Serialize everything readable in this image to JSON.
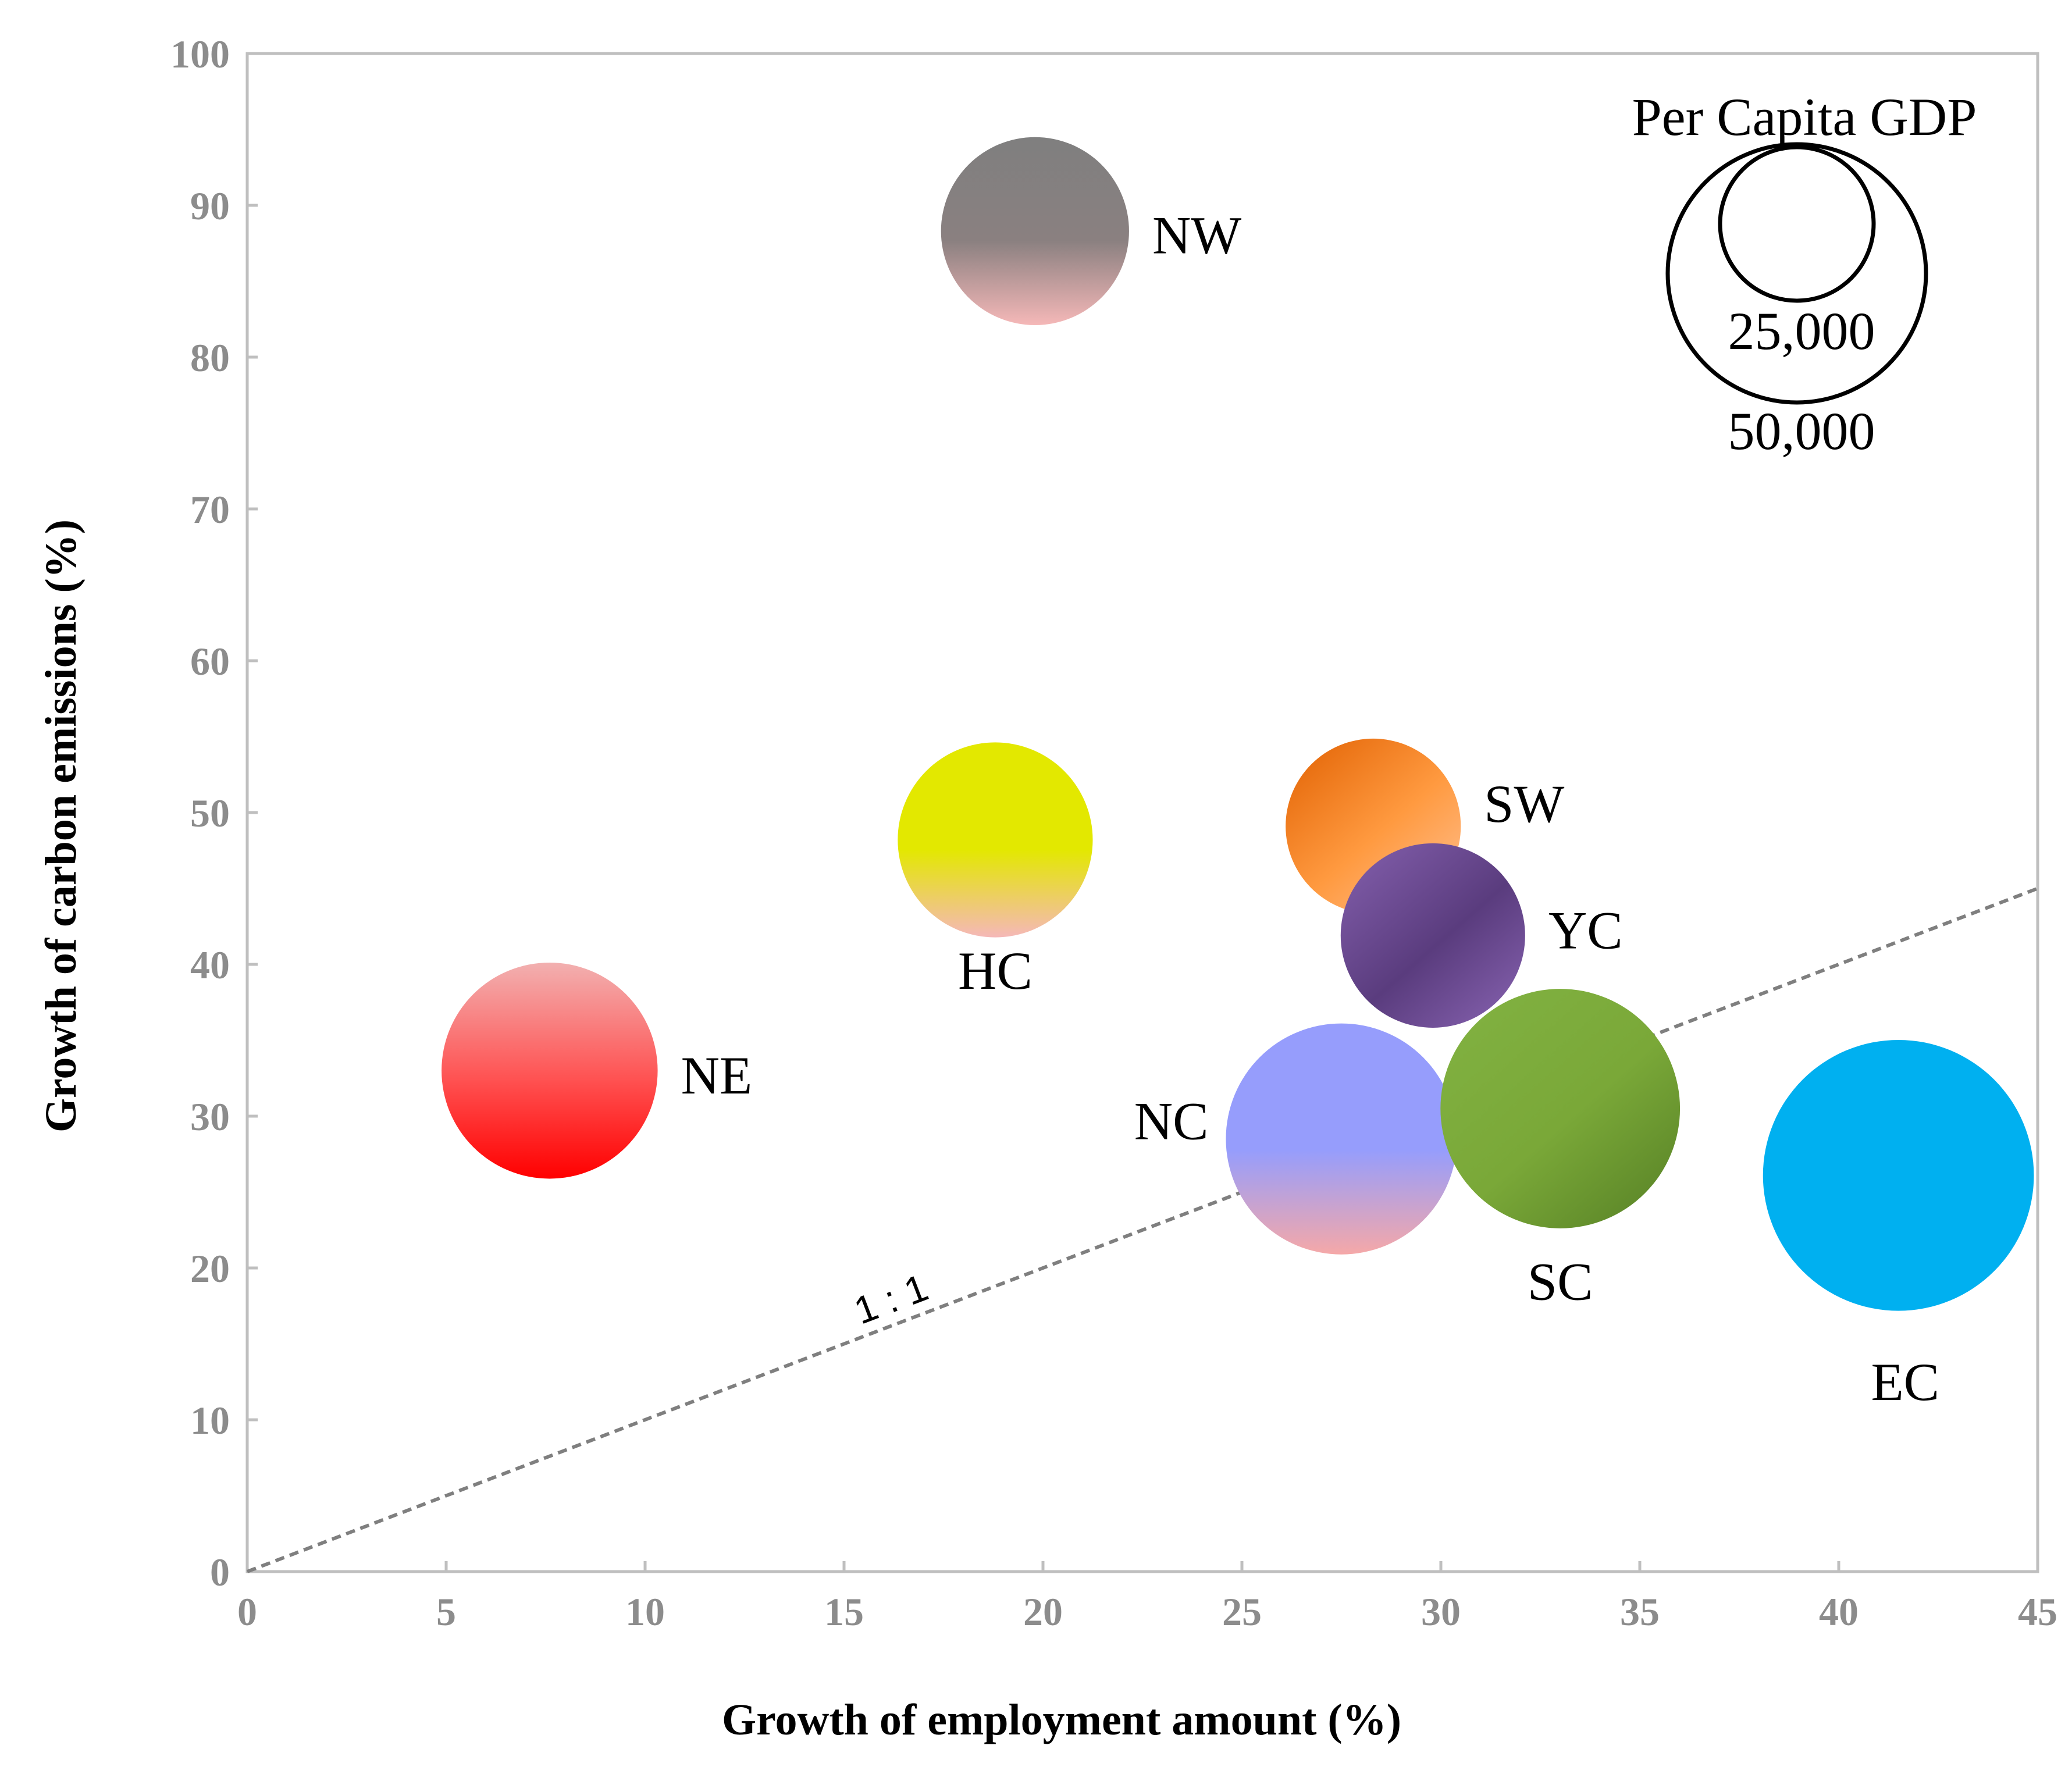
{
  "chart_data": {
    "type": "bubble",
    "xlabel": "Growth of employment amount (%)",
    "ylabel": "Growth of carbon emissions (%)",
    "xlim": [
      0,
      45
    ],
    "ylim": [
      0,
      100
    ],
    "x_ticks": [
      "0",
      "5",
      "10",
      "15",
      "20",
      "25",
      "30",
      "35",
      "40",
      "45"
    ],
    "y_ticks": [
      "0",
      "10",
      "20",
      "30",
      "40",
      "50",
      "60",
      "70",
      "80",
      "90",
      "100"
    ],
    "grid": false,
    "size_legend": {
      "title": "Per Capita GDP",
      "placement": "top-right",
      "entries": [
        {
          "label": "25,000",
          "value": 25000
        },
        {
          "label": "50,000",
          "value": 50000
        }
      ]
    },
    "reference_line": {
      "label": "1 : 1",
      "slope": 1,
      "style": "dashed",
      "color": "#7f7f7f"
    },
    "points": [
      {
        "name": "NE",
        "x": 7.6,
        "y": 33.0,
        "gdp": 35000,
        "colors": [
          "#f2b0b0",
          "#ff5050",
          "#ff0000"
        ]
      },
      {
        "name": "NW",
        "x": 19.8,
        "y": 88.3,
        "gdp": 26500,
        "colors": [
          "#7f7f7f",
          "#8a8080",
          "#f5b8b8"
        ]
      },
      {
        "name": "HC",
        "x": 18.8,
        "y": 48.2,
        "gdp": 28500,
        "colors": [
          "#e3e800",
          "#e3e800",
          "#f5b8b8"
        ]
      },
      {
        "name": "SW",
        "x": 28.3,
        "y": 49.1,
        "gdp": 23000,
        "colors": [
          "#e86e10",
          "#ff9a40",
          "#ffb880"
        ]
      },
      {
        "name": "YC",
        "x": 29.8,
        "y": 41.9,
        "gdp": 25500,
        "colors": [
          "#7b58a3",
          "#5a3c7e",
          "#7d5aa5"
        ]
      },
      {
        "name": "NC",
        "x": 27.5,
        "y": 28.5,
        "gdp": 40000,
        "colors": [
          "#969dfc",
          "#969dfc",
          "#f5a8a8"
        ]
      },
      {
        "name": "SC",
        "x": 33.0,
        "y": 30.5,
        "gdp": 43000,
        "colors": [
          "#80b040",
          "#7aa838",
          "#5f8a2a"
        ]
      },
      {
        "name": "EC",
        "x": 41.5,
        "y": 26.1,
        "gdp": 55000,
        "colors": [
          "#00b0f0",
          "#00b0f0",
          "#00b0f0"
        ]
      }
    ]
  }
}
